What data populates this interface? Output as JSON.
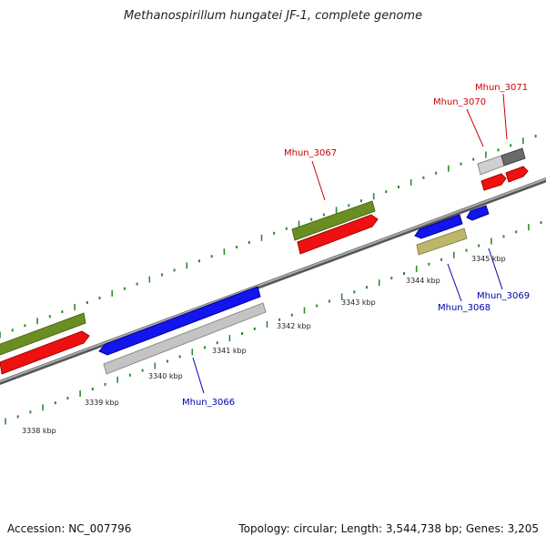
{
  "title": "Methanospirillum hungatei JF-1, complete genome",
  "footer": {
    "accession": "Accession: NC_007796",
    "info": "Topology: circular; Length: 3,544,738 bp; Genes: 3,205"
  },
  "colors": {
    "backbone": "#7a7a7a",
    "tick": "#2e8b2e",
    "label_red": "#cc0000",
    "label_blue": "#0000aa",
    "gene_green": "#6b8e23",
    "gene_red": "#ee1111",
    "gene_blue": "#1414ee",
    "gene_gray": "#c4c4c4",
    "gene_darkgray": "#6a6a6a",
    "gene_khaki": "#bdb76b"
  },
  "scale": {
    "ticks": [
      {
        "label": "3338 kbp"
      },
      {
        "label": "3339 kbp"
      },
      {
        "label": "3340 kbp"
      },
      {
        "label": "3341 kbp"
      },
      {
        "label": "3342 kbp"
      },
      {
        "label": "3343 kbp"
      },
      {
        "label": "3344 kbp"
      },
      {
        "label": "3345 kbp"
      }
    ]
  },
  "genes": [
    {
      "label": "Mhun_3066",
      "color_key": "label_blue"
    },
    {
      "label": "Mhun_3067",
      "color_key": "label_red"
    },
    {
      "label": "Mhun_3068",
      "color_key": "label_blue"
    },
    {
      "label": "Mhun_3069",
      "color_key": "label_blue"
    },
    {
      "label": "Mhun_3070",
      "color_key": "label_red"
    },
    {
      "label": "Mhun_3071",
      "color_key": "label_red"
    }
  ]
}
